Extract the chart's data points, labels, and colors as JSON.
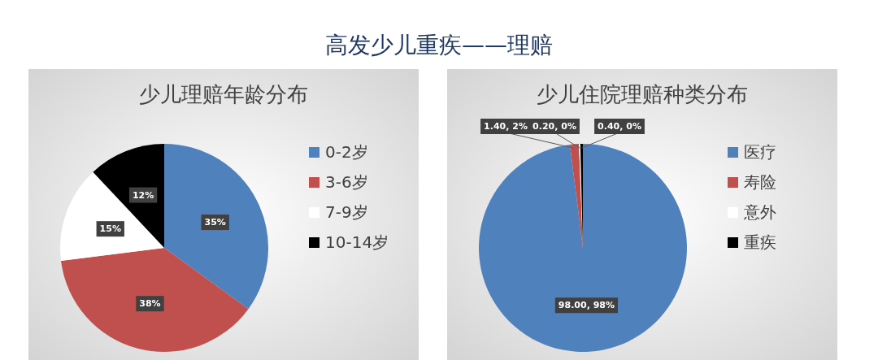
{
  "chart_data": [
    {
      "type": "pie",
      "title": "少儿理赔年龄分布",
      "annotations": [
        "高发少儿重疾——理赔"
      ],
      "categories": [
        "0-2岁",
        "3-6岁",
        "7-9岁",
        "10-14岁"
      ],
      "values": [
        35,
        38,
        15,
        12
      ],
      "colors": [
        "#4f81bd",
        "#c0504d",
        "#ffffff",
        "#000000"
      ],
      "value_labels": [
        "35%",
        "38%",
        "15%",
        "12%"
      ],
      "legend": "right"
    },
    {
      "type": "pie",
      "title": "少儿住院理赔种类分布",
      "categories": [
        "医疗",
        "寿险",
        "意外",
        "重疾"
      ],
      "values": [
        98.0,
        1.4,
        0.2,
        0.4
      ],
      "colors": [
        "#4f81bd",
        "#c0504d",
        "#ffffff",
        "#000000"
      ],
      "value_labels": [
        "98.00, 98%",
        "1.40, 2%",
        "0.20, 0%",
        "0.40, 0%"
      ],
      "legend": "right"
    }
  ]
}
